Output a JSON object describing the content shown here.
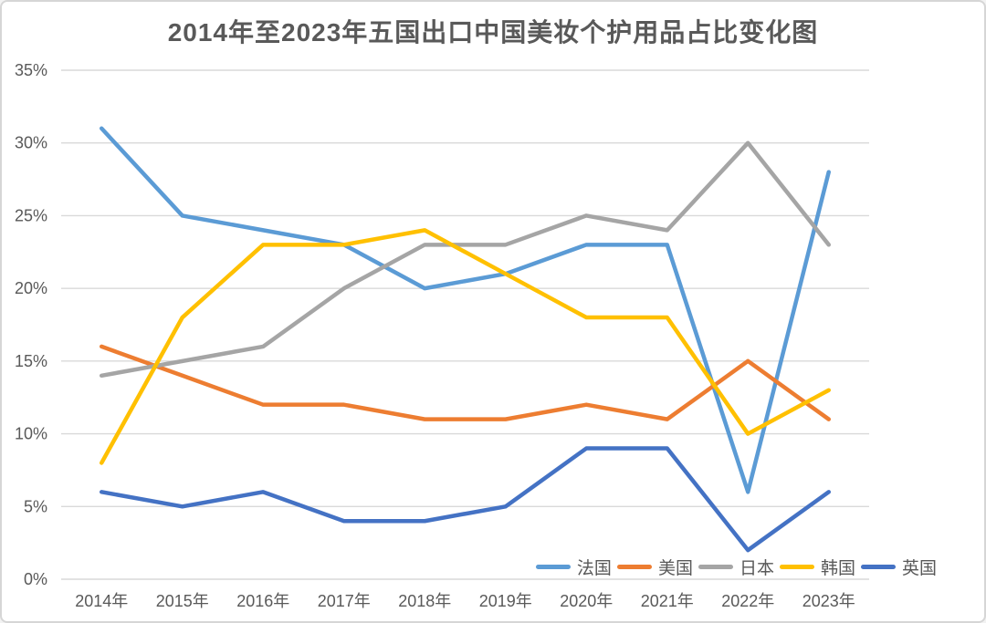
{
  "window": {
    "background_color": "#ffffff",
    "frame_border_color": "#d6d6d6"
  },
  "chart_data": {
    "type": "line",
    "title": "2014年至2023年五国出口中国美妆个护用品占比变化图",
    "title_color": "#595959",
    "categories": [
      "2014年",
      "2015年",
      "2016年",
      "2017年",
      "2018年",
      "2019年",
      "2020年",
      "2021年",
      "2022年",
      "2023年"
    ],
    "series": [
      {
        "name": "法国",
        "color": "#5B9BD5",
        "values": [
          31,
          25,
          24,
          23,
          20,
          21,
          23,
          23,
          6,
          28
        ]
      },
      {
        "name": "美国",
        "color": "#ED7D31",
        "values": [
          16,
          14,
          12,
          12,
          11,
          11,
          12,
          11,
          15,
          11
        ]
      },
      {
        "name": "日本",
        "color": "#A5A5A5",
        "values": [
          14,
          15,
          16,
          20,
          23,
          23,
          25,
          24,
          30,
          23
        ]
      },
      {
        "name": "韩国",
        "color": "#FFC000",
        "values": [
          8,
          18,
          23,
          23,
          24,
          21,
          18,
          18,
          10,
          13
        ]
      },
      {
        "name": "英国",
        "color": "#4472C4",
        "values": [
          6,
          5,
          6,
          4,
          4,
          5,
          9,
          9,
          2,
          6
        ]
      }
    ],
    "xlabel": "",
    "ylabel": "",
    "ylim": [
      0,
      35
    ],
    "y_tick_step": 5,
    "y_tick_labels": [
      "0%",
      "5%",
      "10%",
      "15%",
      "20%",
      "25%",
      "30%",
      "35%"
    ],
    "grid": true,
    "gridline_color": "#d9d9d9",
    "axis_text_color": "#595959",
    "legend_position": "bottom-right"
  }
}
